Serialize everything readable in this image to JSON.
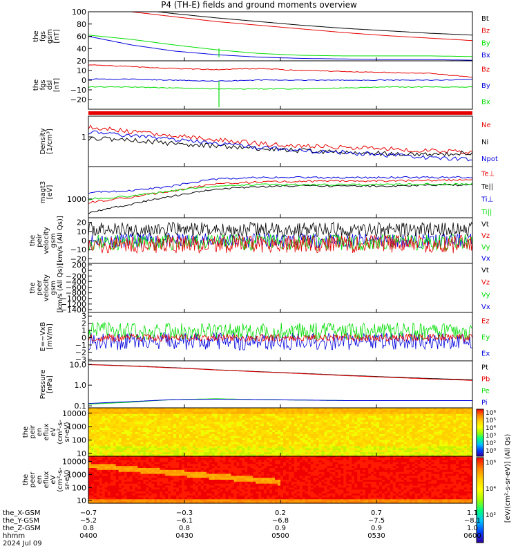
{
  "title": "P4 (TH-E) fields and ground moments overview",
  "colors": {
    "black": "#000000",
    "red": "#e60000",
    "green": "#00dd00",
    "blue": "#0000dd"
  },
  "chart_data": [
    {
      "type": "line",
      "id": "fgs_gsm",
      "ylabel_lines": [
        "the",
        "fgs",
        "gsm",
        "[nT]"
      ],
      "ylim": [
        20,
        100
      ],
      "yticks": [
        "20",
        "40",
        "60",
        "80",
        "100"
      ],
      "series": [
        {
          "name": "Bt",
          "color": "black",
          "values": [
            115,
            105,
            97,
            90,
            84,
            78,
            73,
            69,
            65,
            62
          ]
        },
        {
          "name": "Bz",
          "color": "red",
          "values": [
            110,
            100,
            92,
            84,
            78,
            72,
            66,
            61,
            57,
            53
          ]
        },
        {
          "name": "By",
          "color": "green",
          "values": [
            62,
            55,
            46,
            38,
            32,
            29,
            28,
            28,
            28,
            27
          ]
        },
        {
          "name": "Bx",
          "color": "blue",
          "values": [
            60,
            46,
            36,
            30,
            26,
            24,
            23,
            22,
            22,
            21
          ]
        }
      ]
    },
    {
      "type": "line",
      "id": "fgs_dsl",
      "ylabel_lines": [
        "the",
        "fgs",
        "dsl",
        "[nT]"
      ],
      "ylim": [
        -30,
        20
      ],
      "yticks": [
        "−20",
        "−10",
        "0",
        "10"
      ],
      "series": [
        {
          "name": "Bz",
          "color": "red",
          "values": [
            16,
            14,
            12,
            11,
            12,
            10,
            9,
            8,
            7,
            3
          ]
        },
        {
          "name": "By",
          "color": "blue",
          "values": [
            1,
            1,
            0,
            -1,
            0,
            0,
            0,
            0,
            0,
            1
          ]
        },
        {
          "name": "Bx",
          "color": "green",
          "values": [
            -7,
            -7,
            -8,
            -9,
            -9,
            -9,
            -8,
            -7,
            -7,
            -7
          ]
        }
      ]
    },
    {
      "type": "line",
      "id": "density",
      "ylabel_lines": [
        "Density",
        "[1/cm³]"
      ],
      "log": true,
      "ylim": [
        0.1,
        5
      ],
      "yticks": [
        "1"
      ],
      "series": [
        {
          "name": "Ne",
          "color": "red",
          "values": [
            2.2,
            1.5,
            1.1,
            0.8,
            0.6,
            0.5,
            0.45,
            0.4,
            0.35,
            0.3
          ]
        },
        {
          "name": "Ni",
          "color": "black",
          "values": [
            0.9,
            0.8,
            0.6,
            0.5,
            0.4,
            0.35,
            0.3,
            0.28,
            0.25,
            0.3
          ]
        },
        {
          "name": "Npot",
          "color": "blue",
          "values": [
            1.5,
            1.1,
            0.8,
            0.6,
            0.45,
            0.35,
            0.3,
            0.25,
            0.2,
            0.18
          ]
        }
      ]
    },
    {
      "type": "line",
      "id": "temperature",
      "ylabel_lines": [
        "magt3",
        "[eV]"
      ],
      "log": true,
      "ylim": [
        300,
        8000
      ],
      "yticks": [
        "1000"
      ],
      "series": [
        {
          "name": "Te⊥",
          "color": "red",
          "values": [
            800,
            1100,
            1700,
            2600,
            3000,
            3100,
            3200,
            3200,
            3300,
            3400
          ]
        },
        {
          "name": "Te||",
          "color": "black",
          "values": [
            400,
            700,
            1200,
            1900,
            2200,
            2300,
            2300,
            2300,
            2400,
            2500
          ]
        },
        {
          "name": "Ti⊥",
          "color": "blue",
          "values": [
            1500,
            1700,
            2300,
            3600,
            4000,
            4000,
            3900,
            4000,
            4000,
            4100
          ]
        },
        {
          "name": "Ti||",
          "color": "green",
          "values": [
            1000,
            1200,
            1700,
            2300,
            2500,
            2500,
            2500,
            2500,
            2600,
            2600
          ]
        }
      ]
    },
    {
      "type": "line",
      "id": "peir_velocity",
      "ylabel_lines": [
        "the",
        "peir",
        "velocity",
        "gsm",
        "[km/s (All Qs)]"
      ],
      "ylim": [
        -25,
        25
      ],
      "yticks": [
        "−20",
        "−10",
        "0",
        "10",
        "20"
      ],
      "series": [
        {
          "name": "Vt",
          "color": "black"
        },
        {
          "name": "Vz",
          "color": "red"
        },
        {
          "name": "Vy",
          "color": "green"
        },
        {
          "name": "Vx",
          "color": "blue"
        }
      ]
    },
    {
      "type": "line",
      "id": "peer_velocity",
      "ylabel_lines": [
        "the",
        "peer",
        "velocity",
        "gsm",
        "[km/s (All Qs)]"
      ],
      "ylim": [
        -1500,
        250
      ],
      "yticks": [
        "−1400",
        "−1200",
        "−1000",
        "−800",
        "−600",
        "−400",
        "−200",
        "0",
        "200"
      ],
      "series": [
        {
          "name": "Vt",
          "color": "black"
        },
        {
          "name": "Vz",
          "color": "red"
        },
        {
          "name": "Vy",
          "color": "green"
        },
        {
          "name": "Vx",
          "color": "blue"
        }
      ]
    },
    {
      "type": "line",
      "id": "efield",
      "ylabel_lines": [
        "E=−VxB",
        "[mV/m]"
      ],
      "ylim": [
        -3.2,
        3.5
      ],
      "yticks": [
        "−3",
        "−2",
        "−1",
        "0",
        "1",
        "2",
        "3"
      ],
      "series": [
        {
          "name": "Ez",
          "color": "red"
        },
        {
          "name": "Ey",
          "color": "green"
        },
        {
          "name": "Ex",
          "color": "blue"
        }
      ]
    },
    {
      "type": "line",
      "id": "pressure",
      "ylabel_lines": [
        "Pressure",
        "[nPa]"
      ],
      "log": true,
      "ylim": [
        0.08,
        15
      ],
      "yticks": [
        "0.1",
        "1.0",
        "10.0"
      ],
      "series": [
        {
          "name": "Pt",
          "color": "black",
          "values": [
            10,
            8.5,
            7,
            5.5,
            4.5,
            3.7,
            3,
            2.5,
            2.1,
            1.8
          ]
        },
        {
          "name": "Pb",
          "color": "red",
          "values": [
            9.8,
            8.3,
            6.8,
            5.4,
            4.4,
            3.6,
            2.9,
            2.4,
            2.0,
            1.7
          ]
        },
        {
          "name": "Pe",
          "color": "green",
          "values": [
            0.12,
            0.15,
            0.2,
            0.22,
            0.2,
            0.19,
            0.18,
            0.18,
            0.18,
            0.18
          ]
        },
        {
          "name": "Pi",
          "color": "blue",
          "values": [
            0.13,
            0.16,
            0.2,
            0.21,
            0.2,
            0.19,
            0.18,
            0.18,
            0.18,
            0.18
          ]
        }
      ]
    },
    {
      "type": "heatmap",
      "id": "peir_spectrogram",
      "ylabel_lines": [
        "the",
        "peir",
        "en",
        "eflux",
        "eV",
        "(cm²-s-",
        "sr-eV)"
      ],
      "yticks": [
        "10",
        "100",
        "1000",
        "10000"
      ]
    },
    {
      "type": "heatmap",
      "id": "peer_spectrogram",
      "ylabel_lines": [
        "the",
        "peer",
        "en",
        "eflux",
        "eV",
        "(cm²-s-",
        "sr-eV)"
      ],
      "yticks": [
        "10",
        "100",
        "1000",
        "10000"
      ]
    }
  ],
  "colorbar": {
    "label": "[eV/(cm²-s-sr-eV)] (All Qs)",
    "ticks_upper": [
      "10⁶",
      "10⁵",
      "10⁴",
      "10³",
      "10²",
      "10⁰"
    ],
    "ticks_lower": [
      "10⁶",
      "10⁴",
      "10²"
    ]
  },
  "x_axis": {
    "rows": [
      {
        "label": "the_X-GSM",
        "values": [
          "−0.7",
          "−0.3",
          "0.2",
          "0.7",
          "1.1"
        ]
      },
      {
        "label": "the_Y-GSM",
        "values": [
          "−5.2",
          "−6.1",
          "−6.8",
          "−7.5",
          "−8.1"
        ]
      },
      {
        "label": "the_Z-GSM",
        "values": [
          "0.8",
          "0.8",
          "0.9",
          "0.9",
          "1.0"
        ]
      },
      {
        "label": "hhmm",
        "values": [
          "0400",
          "0430",
          "0500",
          "0530",
          "0600"
        ]
      },
      {
        "label": "2024 Jul 09",
        "values": []
      }
    ]
  }
}
